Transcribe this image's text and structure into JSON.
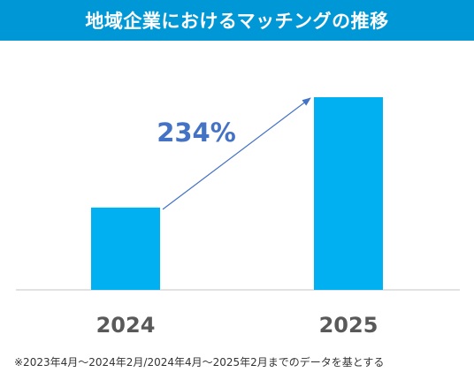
{
  "title": "地域企業におけるマッチングの推移",
  "footnote": "※2023年4月～2024年2月/2024年4月～2025年2月までのデータを基とする",
  "colors": {
    "title_bar": "#0097d7",
    "bar": "#00b0f0",
    "arrow": "#4472c4",
    "growth_label": "#4472c4",
    "axis_label": "#595959"
  },
  "chart_data": {
    "type": "bar",
    "categories": [
      "2024",
      "2025"
    ],
    "values": [
      1,
      2.34
    ],
    "title": "地域企業におけるマッチングの推移",
    "annotations": [
      {
        "text": "234%",
        "type": "growth-arrow",
        "from": "2024",
        "to": "2025"
      }
    ],
    "grid": false,
    "legend": "none"
  }
}
